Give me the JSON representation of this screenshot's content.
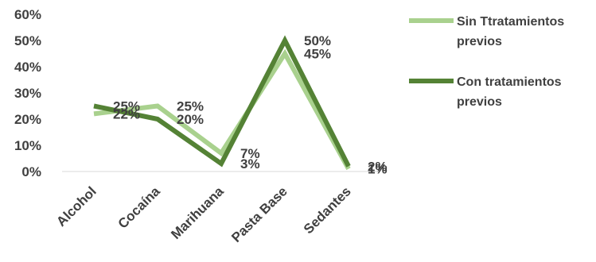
{
  "chart_data": {
    "type": "line",
    "title": "",
    "xlabel": "",
    "ylabel": "",
    "categories": [
      "Alcohol",
      "Cocaína",
      "Marihuana",
      "Pasta Base",
      "Sedantes"
    ],
    "yticks": [
      "0%",
      "10%",
      "20%",
      "30%",
      "40%",
      "50%",
      "60%"
    ],
    "ylim": [
      0,
      60
    ],
    "grid": false,
    "legend_position": "right",
    "series": [
      {
        "name": "Sin Ttratamientos previos",
        "values": [
          22,
          25,
          7,
          45,
          1
        ],
        "labels": [
          "22%",
          "25%",
          "7%",
          "45%",
          "1%"
        ],
        "color": "#a9d18e"
      },
      {
        "name": "Con tratamientos previos",
        "values": [
          25,
          20,
          3,
          50,
          2
        ],
        "labels": [
          "25%",
          "20%",
          "3%",
          "50%",
          "2%"
        ],
        "color": "#548235"
      }
    ]
  }
}
